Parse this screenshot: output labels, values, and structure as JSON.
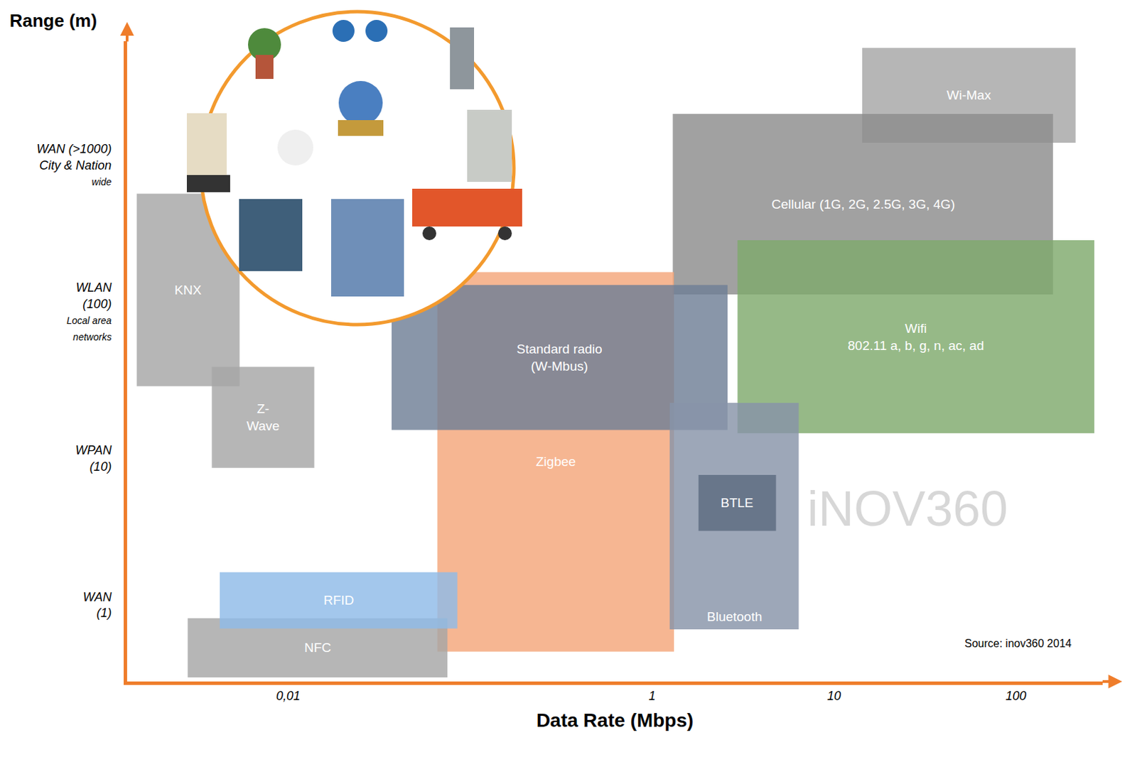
{
  "chart_data": {
    "type": "range_map",
    "x_label": "Data Rate (Mbps)",
    "y_label": "Range (m)",
    "log": true,
    "grid": false,
    "xlim": [
      0.0013,
      300
    ],
    "xticks": [
      {
        "value": 0.01,
        "label": "0,01"
      },
      1,
      10,
      100
    ],
    "ylim": [
      0.3,
      7000
    ],
    "yticks": [
      {
        "value": 1,
        "label": [
          "WAN",
          "(1)"
        ]
      },
      {
        "value": 10,
        "label": [
          "WPAN",
          "(10)"
        ]
      },
      {
        "value": 100,
        "label": [
          "WLAN",
          "(100)",
          "Local area",
          "networks"
        ]
      },
      {
        "value": 1000,
        "label": [
          "WAN (>1000)",
          "City & Nation",
          "wide"
        ]
      }
    ],
    "source": "Source: inov360 2014",
    "watermark": "iNOV360",
    "series": [
      {
        "name": [
          "Wi-Max"
        ],
        "color": "#a6a6a6",
        "x": [
          14.3,
          213
        ],
        "y": [
          1420,
          6300
        ]
      },
      {
        "name": [
          "Cellular (1G, 2G, 2.5G, 3G, 4G)"
        ],
        "color": "#8c8c8c",
        "x": [
          1.3,
          160
        ],
        "y": [
          131,
          2230
        ]
      },
      {
        "name": [
          "Wifi",
          "802.11 a, b, g, n, ac, ad"
        ],
        "color": "#7fa96c",
        "x": [
          2.95,
          270
        ],
        "y": [
          14.8,
          307
        ]
      },
      {
        "name": [
          "Zigbee"
        ],
        "color": "#f4a67a",
        "x": [
          0.066,
          1.32
        ],
        "y": [
          0.48,
          186
        ]
      },
      {
        "name": [
          "Standard radio",
          "(W-Mbus)"
        ],
        "color": "#6f7f96",
        "x": [
          0.037,
          2.6
        ],
        "y": [
          15.6,
          152
        ]
      },
      {
        "name": [
          "Bluetooth"
        ],
        "color": "#8894a8",
        "x": [
          1.25,
          6.4
        ],
        "y": [
          0.68,
          23.9
        ]
      },
      {
        "name": [
          "BTLE"
        ],
        "color": "#5d6b80",
        "x": [
          1.8,
          4.8
        ],
        "y": [
          3.2,
          7.7
        ]
      },
      {
        "name": [
          "KNX"
        ],
        "color": "#a6a6a6",
        "x": [
          0.00147,
          0.0054
        ],
        "y": [
          31,
          637
        ]
      },
      {
        "name": [
          "Z-",
          "Wave"
        ],
        "color": "#a6a6a6",
        "x": [
          0.0038,
          0.0139
        ],
        "y": [
          8.6,
          42
        ]
      },
      {
        "name": [
          "NFC"
        ],
        "color": "#a6a6a6",
        "x": [
          0.0028,
          0.075
        ],
        "y": [
          0.32,
          0.81
        ]
      },
      {
        "name": [
          "RFID"
        ],
        "color": "#8fbbe8",
        "x": [
          0.0042,
          0.085
        ],
        "y": [
          0.69,
          1.67
        ]
      }
    ]
  }
}
